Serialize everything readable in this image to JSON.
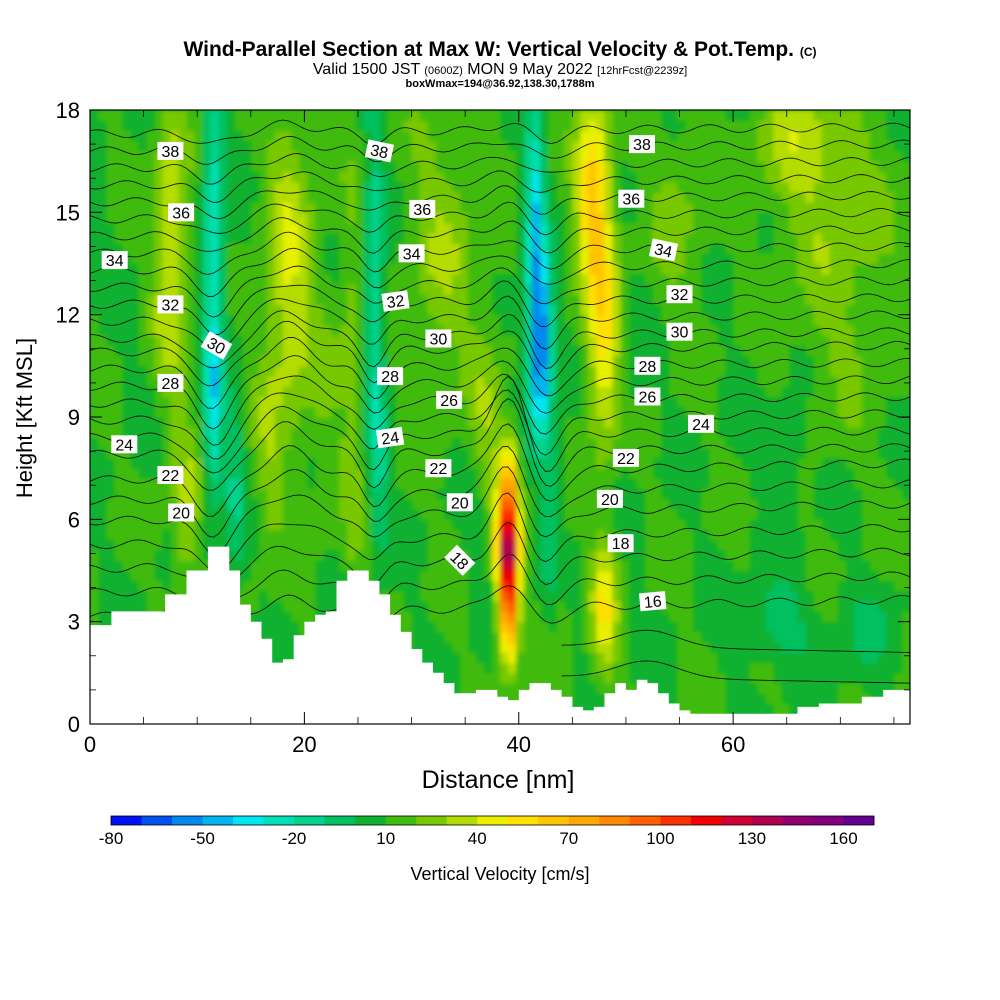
{
  "title": {
    "main": "Wind-Parallel Section at Max W: Vertical Velocity & Pot.Temp.",
    "copyright": "(C)",
    "valid_prefix": "Valid 1500 JST",
    "valid_zulu": "(0600Z)",
    "valid_date": "MON 9 May 2022",
    "forecast": "[12hrFcst@2239z]",
    "box_info": "boxWmax=194@36.92,138.30,1788m"
  },
  "chart_data": {
    "type": "heatmap",
    "xlabel": "Distance [nm]",
    "ylabel": "Height [Kft MSL]",
    "xlim": [
      0,
      76.5
    ],
    "ylim": [
      0,
      18
    ],
    "x_ticks": [
      "0",
      "20",
      "40",
      "60"
    ],
    "y_ticks": [
      "0",
      "3",
      "6",
      "9",
      "12",
      "15",
      "18"
    ],
    "colorbar": {
      "title": "Vertical Velocity [cm/s]",
      "tick_labels": [
        "-80",
        "-50",
        "-20",
        "10",
        "40",
        "70",
        "100",
        "130",
        "160"
      ],
      "levels": [
        -80,
        -70,
        -60,
        -50,
        -40,
        -30,
        -20,
        -10,
        0,
        10,
        20,
        30,
        40,
        50,
        60,
        70,
        80,
        90,
        100,
        110,
        120,
        130,
        140,
        150,
        160,
        170
      ],
      "colors": [
        "#0010f0",
        "#0050f0",
        "#0088f0",
        "#00b4f0",
        "#00e6f0",
        "#00e0b4",
        "#00d28c",
        "#00c060",
        "#10b030",
        "#40bb10",
        "#78c800",
        "#b4dc00",
        "#e8f000",
        "#ffe000",
        "#ffc400",
        "#ffa800",
        "#ff8800",
        "#ff6000",
        "#ff3000",
        "#f00000",
        "#d00030",
        "#b00050",
        "#900070",
        "#800080",
        "#600090"
      ]
    },
    "terrain_height_kft": {
      "x": [
        0,
        2,
        5,
        7,
        9,
        11,
        12,
        13,
        14,
        15,
        16,
        17,
        18,
        19,
        20,
        21,
        22,
        23,
        24,
        25,
        26,
        27,
        28,
        29,
        30,
        31,
        32,
        33,
        34,
        35,
        36,
        37,
        38,
        39,
        40,
        41,
        42,
        43,
        44,
        45,
        46,
        47,
        48,
        49,
        50,
        51,
        52,
        53,
        54,
        55,
        56,
        58,
        60,
        62,
        64,
        66,
        68,
        70,
        72,
        74,
        76.5
      ],
      "h": [
        2.9,
        3.3,
        3.3,
        3.8,
        4.5,
        5.2,
        5.2,
        4.5,
        3.5,
        3.0,
        2.5,
        1.8,
        1.9,
        2.6,
        3.0,
        3.2,
        3.3,
        4.2,
        4.5,
        4.5,
        4.2,
        3.8,
        3.2,
        2.7,
        2.2,
        1.8,
        1.5,
        1.2,
        0.9,
        0.9,
        1.0,
        1.0,
        0.8,
        0.7,
        1.0,
        1.2,
        1.2,
        1.0,
        0.8,
        0.5,
        0.4,
        0.5,
        0.9,
        1.2,
        1.0,
        1.3,
        1.2,
        0.9,
        0.6,
        0.4,
        0.3,
        0.3,
        0.3,
        0.3,
        0.3,
        0.5,
        0.6,
        0.6,
        0.8,
        1.0,
        1.0
      ]
    },
    "isentrope_labels": [
      {
        "text": "38",
        "x": 7.5,
        "y": 16.8
      },
      {
        "text": "38",
        "x": 27.0,
        "y": 16.8,
        "rot": 12
      },
      {
        "text": "38",
        "x": 51.5,
        "y": 17.0
      },
      {
        "text": "36",
        "x": 8.5,
        "y": 15.0
      },
      {
        "text": "36",
        "x": 31.0,
        "y": 15.1
      },
      {
        "text": "36",
        "x": 50.5,
        "y": 15.4
      },
      {
        "text": "34",
        "x": 2.3,
        "y": 13.6
      },
      {
        "text": "34",
        "x": 30.0,
        "y": 13.8
      },
      {
        "text": "34",
        "x": 53.5,
        "y": 13.9,
        "rot": 12
      },
      {
        "text": "32",
        "x": 7.5,
        "y": 12.3
      },
      {
        "text": "32",
        "x": 28.5,
        "y": 12.4,
        "rot": -8
      },
      {
        "text": "32",
        "x": 55.0,
        "y": 12.6
      },
      {
        "text": "30",
        "x": 11.8,
        "y": 11.1,
        "rot": 30
      },
      {
        "text": "30",
        "x": 32.5,
        "y": 11.3
      },
      {
        "text": "30",
        "x": 55.0,
        "y": 11.5
      },
      {
        "text": "28",
        "x": 7.5,
        "y": 10.0
      },
      {
        "text": "28",
        "x": 28.0,
        "y": 10.2
      },
      {
        "text": "28",
        "x": 52.0,
        "y": 10.5
      },
      {
        "text": "26",
        "x": 33.5,
        "y": 9.5
      },
      {
        "text": "26",
        "x": 52.0,
        "y": 9.6
      },
      {
        "text": "24",
        "x": 3.2,
        "y": 8.2
      },
      {
        "text": "24",
        "x": 28.0,
        "y": 8.4,
        "rot": -8
      },
      {
        "text": "24",
        "x": 57.0,
        "y": 8.8
      },
      {
        "text": "22",
        "x": 7.5,
        "y": 7.3
      },
      {
        "text": "22",
        "x": 32.5,
        "y": 7.5
      },
      {
        "text": "22",
        "x": 50.0,
        "y": 7.8
      },
      {
        "text": "20",
        "x": 8.5,
        "y": 6.2
      },
      {
        "text": "20",
        "x": 34.5,
        "y": 6.5
      },
      {
        "text": "20",
        "x": 48.5,
        "y": 6.6
      },
      {
        "text": "18",
        "x": 34.5,
        "y": 4.8,
        "rot": 45
      },
      {
        "text": "18",
        "x": 49.5,
        "y": 5.3
      },
      {
        "text": "16",
        "x": 52.5,
        "y": 3.6,
        "rot": -5
      }
    ]
  }
}
